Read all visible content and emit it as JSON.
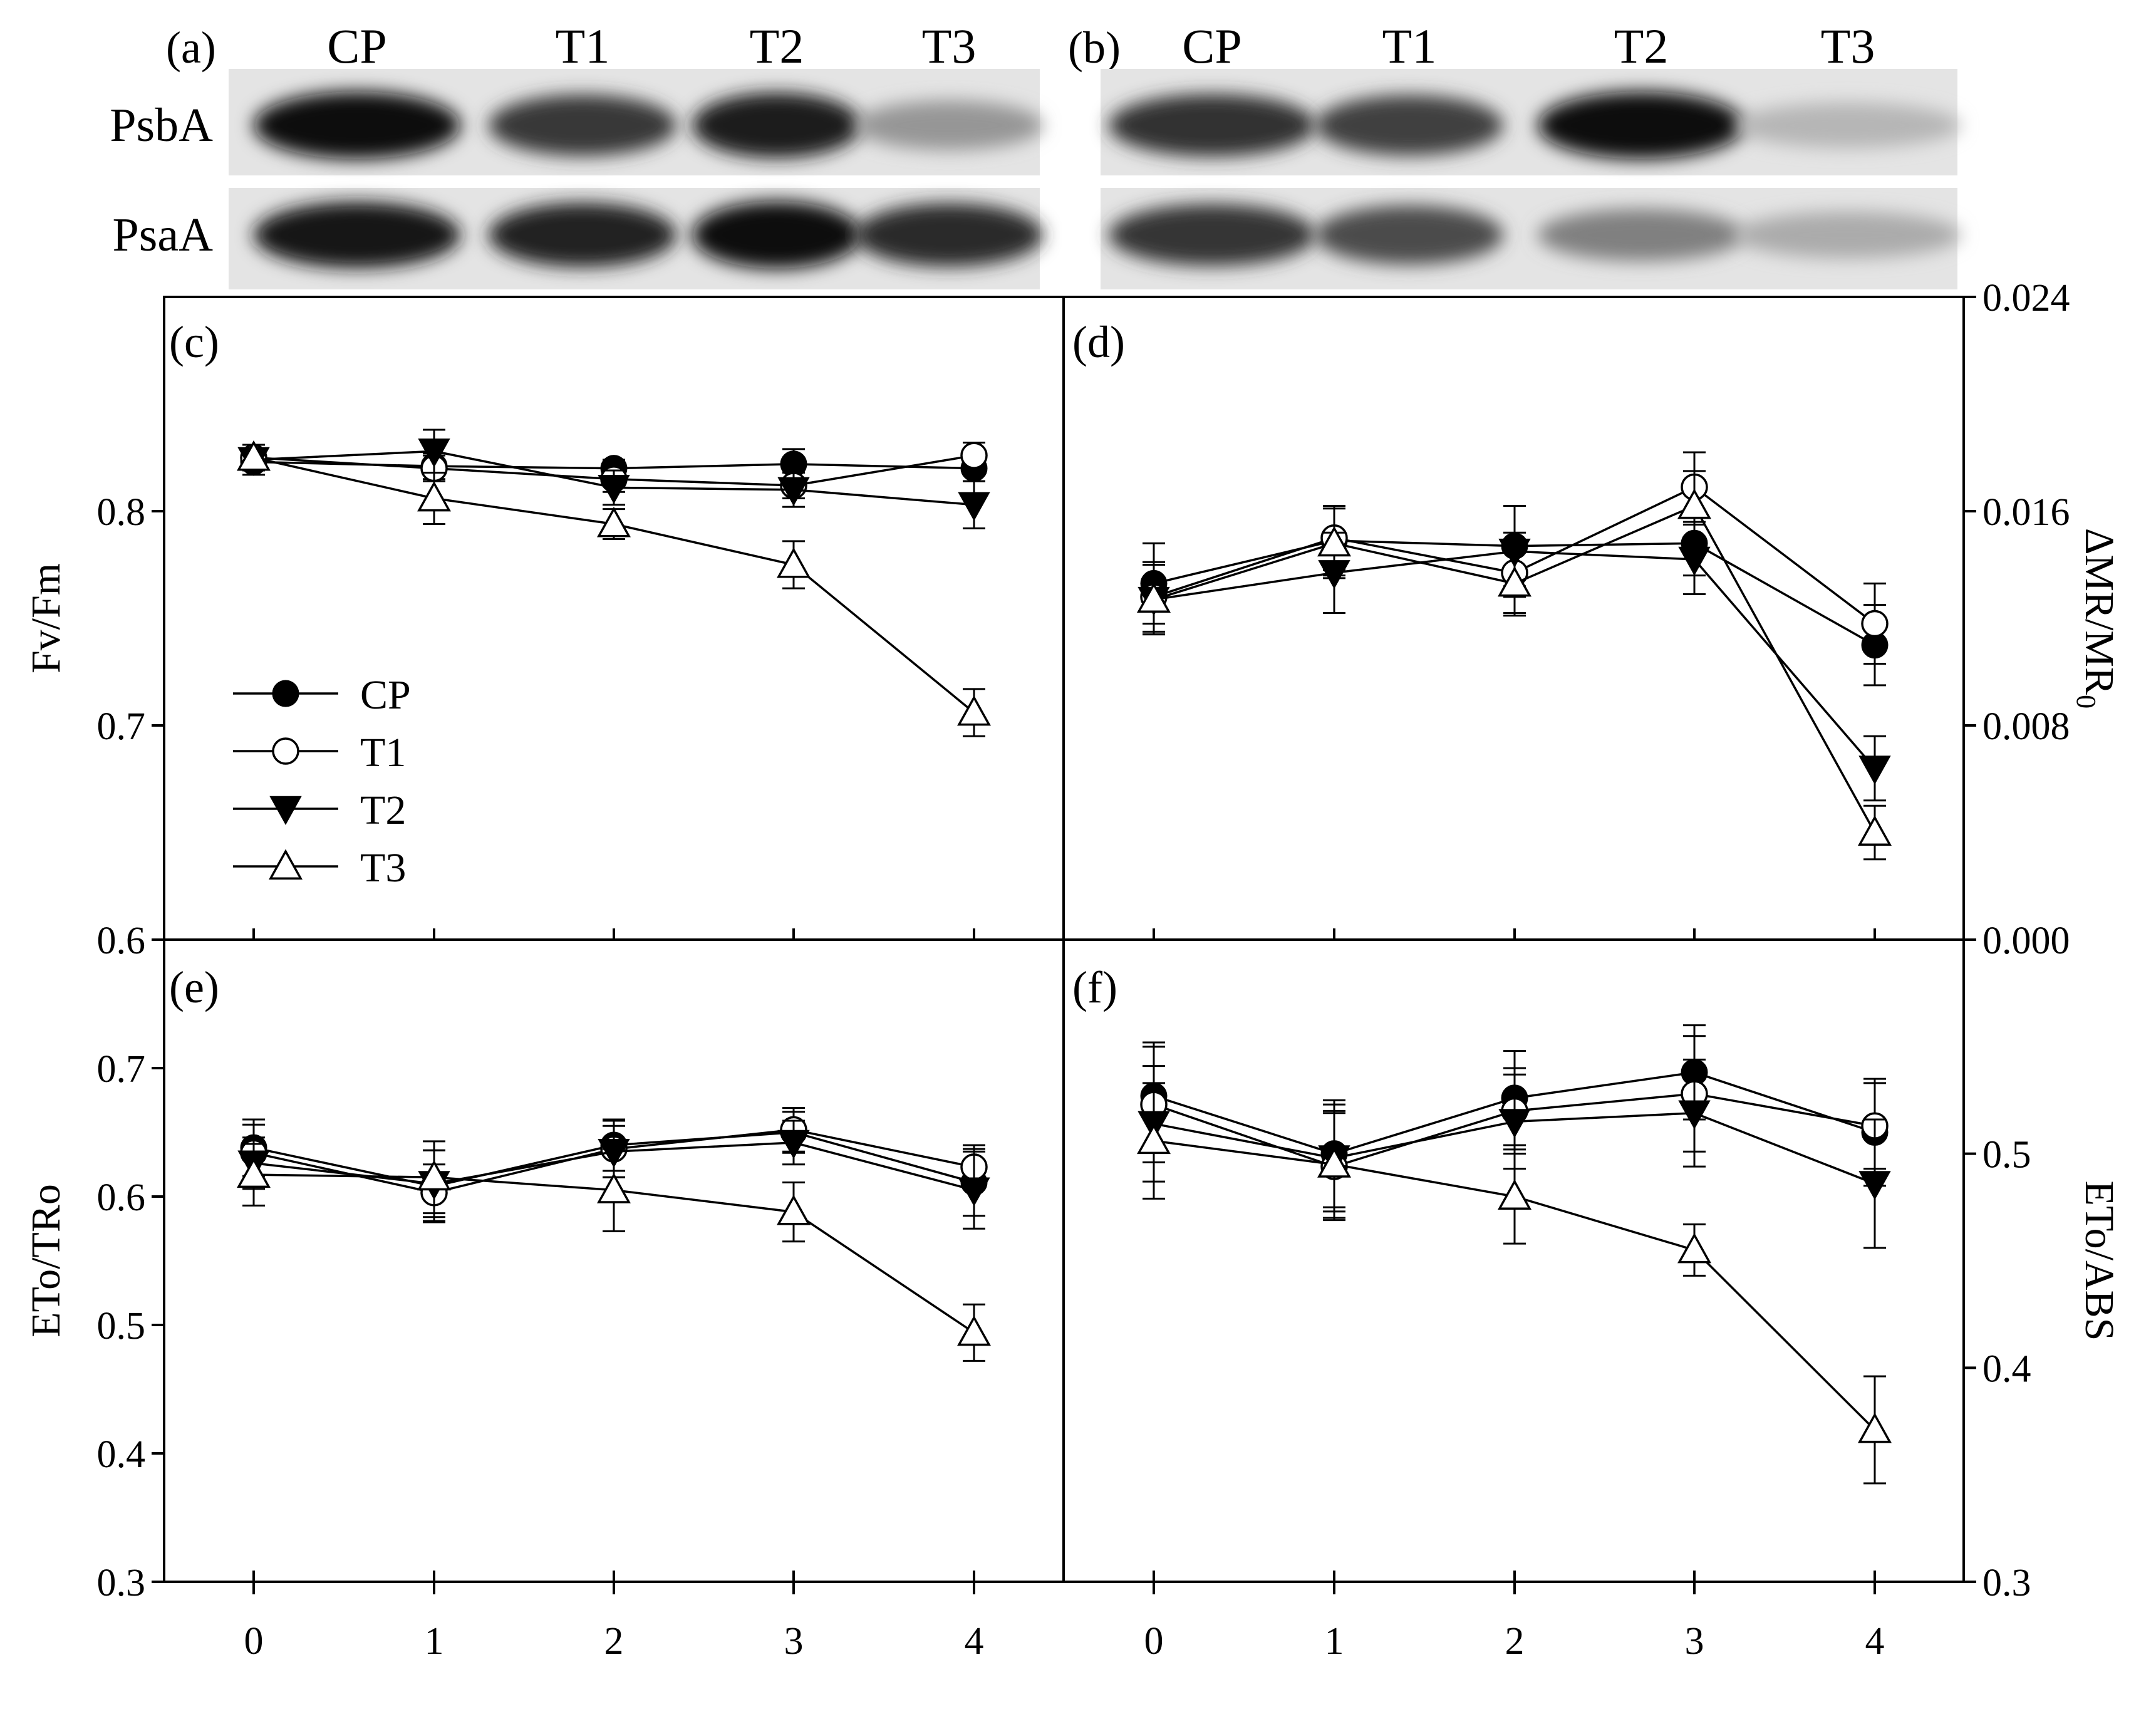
{
  "blots": [
    {
      "panel_label": "(a)",
      "columns": [
        "CP",
        "T1",
        "T2",
        "T3"
      ],
      "rows": [
        {
          "label": "PsbA",
          "intensity": [
            1.0,
            0.78,
            0.92,
            0.35
          ]
        },
        {
          "label": "PsaA",
          "intensity": [
            0.95,
            0.88,
            1.0,
            0.85
          ]
        }
      ]
    },
    {
      "panel_label": "(b)",
      "columns": [
        "CP",
        "T1",
        "T2",
        "T3"
      ],
      "rows": [
        {
          "label": "PsbA",
          "intensity": [
            0.82,
            0.75,
            1.0,
            0.2
          ]
        },
        {
          "label": "PsaA",
          "intensity": [
            0.8,
            0.7,
            0.45,
            0.25
          ]
        }
      ]
    }
  ],
  "legend": {
    "entries": [
      {
        "label": "CP",
        "marker": "filled-circle"
      },
      {
        "label": "T1",
        "marker": "open-circle"
      },
      {
        "label": "T2",
        "marker": "filled-triangle-down"
      },
      {
        "label": "T3",
        "marker": "open-triangle-up"
      }
    ],
    "placement": "lower-left of panel (c)"
  },
  "chart_data": [
    {
      "type": "line",
      "panel_label": "(c)",
      "ylabel": "Fv/Fm",
      "yaxis_side": "left",
      "x": [
        0,
        1,
        2,
        3,
        4
      ],
      "xticks": [
        "0",
        "1",
        "2",
        "3",
        "4"
      ],
      "ylim": [
        0.6,
        0.9
      ],
      "yticks": [
        "0.6",
        "0.7",
        "0.8"
      ],
      "ytick_values": [
        0.6,
        0.7,
        0.8
      ],
      "series": [
        {
          "name": "CP",
          "values": [
            0.823,
            0.821,
            0.82,
            0.822,
            0.82
          ],
          "err": [
            0.006,
            0.006,
            0.004,
            0.007,
            0.006
          ]
        },
        {
          "name": "T1",
          "values": [
            0.825,
            0.82,
            0.815,
            0.812,
            0.826
          ],
          "err": [
            0.006,
            0.006,
            0.006,
            0.006,
            0.006
          ]
        },
        {
          "name": "T2",
          "values": [
            0.824,
            0.828,
            0.811,
            0.81,
            0.803
          ],
          "err": [
            0.005,
            0.01,
            0.008,
            0.008,
            0.011
          ]
        },
        {
          "name": "T3",
          "values": [
            0.825,
            0.806,
            0.794,
            0.775,
            0.706
          ],
          "err": [
            0.006,
            0.012,
            0.007,
            0.011,
            0.011
          ]
        }
      ]
    },
    {
      "type": "line",
      "panel_label": "(d)",
      "ylabel": "ΔMR/MR",
      "ylabel_subscript": "0",
      "yaxis_side": "right",
      "x": [
        0,
        1,
        2,
        3,
        4
      ],
      "xticks": [
        "0",
        "1",
        "2",
        "3",
        "4"
      ],
      "ylim": [
        0.0,
        0.024
      ],
      "yticks": [
        "0.000",
        "0.008",
        "0.016",
        "0.024"
      ],
      "ytick_values": [
        0.0,
        0.008,
        0.016,
        0.024
      ],
      "series": [
        {
          "name": "CP",
          "values": [
            0.0133,
            0.0149,
            0.0147,
            0.0148,
            0.011
          ],
          "err": [
            0.0015,
            0.0013,
            0.0015,
            0.0012,
            0.0015
          ]
        },
        {
          "name": "T1",
          "values": [
            0.0128,
            0.015,
            0.0137,
            0.0169,
            0.0118
          ],
          "err": [
            0.0013,
            0.0012,
            0.0015,
            0.0013,
            0.0015
          ]
        },
        {
          "name": "T2",
          "values": [
            0.0127,
            0.0137,
            0.0145,
            0.0142,
            0.0064
          ],
          "err": [
            0.0013,
            0.0015,
            0.0017,
            0.0013,
            0.0012
          ]
        },
        {
          "name": "T3",
          "values": [
            0.0127,
            0.0148,
            0.0133,
            0.0162,
            0.004
          ],
          "err": [
            0.0013,
            0.0013,
            0.0012,
            0.0013,
            0.001
          ]
        }
      ]
    },
    {
      "type": "line",
      "panel_label": "(e)",
      "ylabel": "ETo/TRo",
      "yaxis_side": "left",
      "x": [
        0,
        1,
        2,
        3,
        4
      ],
      "xticks": [
        "0",
        "1",
        "2",
        "3",
        "4"
      ],
      "ylim": [
        0.3,
        0.8
      ],
      "yticks": [
        "0.3",
        "0.4",
        "0.5",
        "0.6",
        "0.7"
      ],
      "ytick_values": [
        0.3,
        0.4,
        0.5,
        0.6,
        0.7
      ],
      "series": [
        {
          "name": "CP",
          "values": [
            0.638,
            0.608,
            0.64,
            0.65,
            0.611
          ],
          "err": [
            0.022,
            0.028,
            0.02,
            0.016,
            0.026
          ]
        },
        {
          "name": "T1",
          "values": [
            0.634,
            0.603,
            0.637,
            0.652,
            0.623
          ],
          "err": [
            0.022,
            0.022,
            0.022,
            0.017,
            0.017
          ]
        },
        {
          "name": "T2",
          "values": [
            0.626,
            0.61,
            0.635,
            0.642,
            0.605
          ],
          "err": [
            0.02,
            0.026,
            0.02,
            0.017,
            0.03
          ]
        },
        {
          "name": "T3",
          "values": [
            0.617,
            0.615,
            0.605,
            0.588,
            0.494
          ],
          "err": [
            0.024,
            0.028,
            0.032,
            0.023,
            0.022
          ]
        }
      ]
    },
    {
      "type": "line",
      "panel_label": "(f)",
      "ylabel": "ETo/ABS",
      "yaxis_side": "right",
      "x": [
        0,
        1,
        2,
        3,
        4
      ],
      "xticks": [
        "0",
        "1",
        "2",
        "3",
        "4"
      ],
      "ylim": [
        0.3,
        0.6
      ],
      "yticks": [
        "0.3",
        "0.4",
        "0.5"
      ],
      "ytick_values": [
        0.3,
        0.4,
        0.5
      ],
      "series": [
        {
          "name": "CP",
          "values": [
            0.527,
            0.5,
            0.526,
            0.538,
            0.51
          ],
          "err": [
            0.025,
            0.025,
            0.022,
            0.022,
            0.025
          ]
        },
        {
          "name": "T1",
          "values": [
            0.523,
            0.494,
            0.52,
            0.528,
            0.513
          ],
          "err": [
            0.027,
            0.025,
            0.02,
            0.027,
            0.02
          ]
        },
        {
          "name": "T2",
          "values": [
            0.514,
            0.498,
            0.515,
            0.519,
            0.486
          ],
          "err": [
            0.027,
            0.025,
            0.022,
            0.025,
            0.03
          ]
        },
        {
          "name": "T3",
          "values": [
            0.506,
            0.495,
            0.48,
            0.455,
            0.371
          ],
          "err": [
            0.027,
            0.025,
            0.022,
            0.012,
            0.025
          ]
        }
      ]
    }
  ]
}
